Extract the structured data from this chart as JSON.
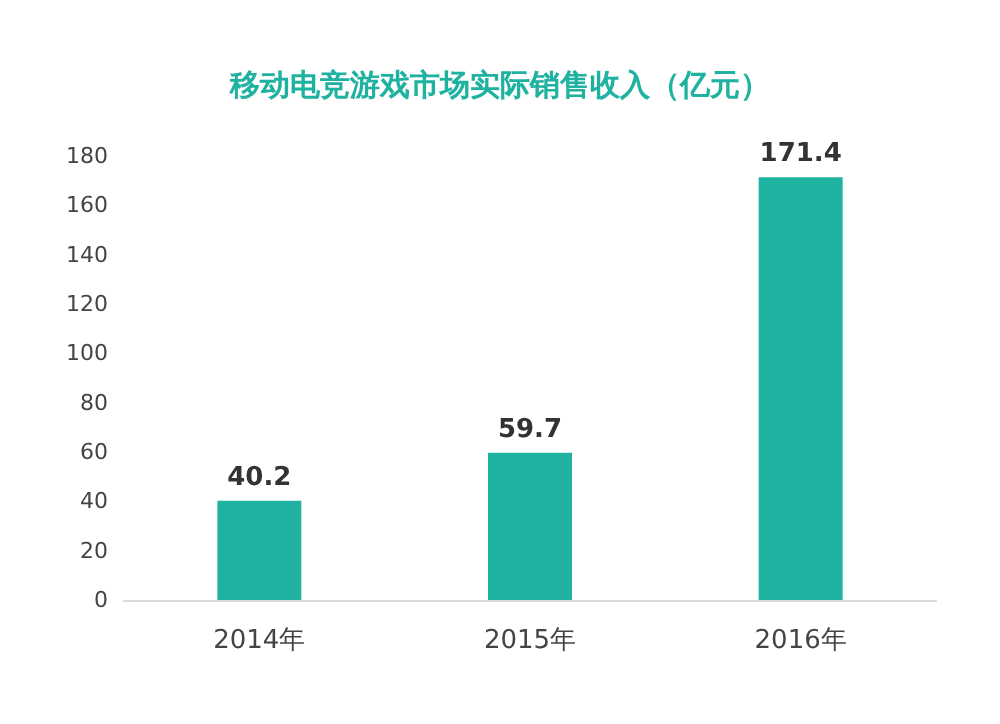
{
  "chart_data": {
    "type": "bar",
    "title": "移动电竞游戏市场实际销售收入（亿元）",
    "categories": [
      "2014年",
      "2015年",
      "2016年"
    ],
    "values": [
      40.2,
      59.7,
      171.4
    ],
    "color": "#20b2a0",
    "ylim": [
      0,
      180
    ],
    "yticks": [
      0,
      20,
      40,
      60,
      80,
      100,
      120,
      140,
      160,
      180
    ],
    "grid": false,
    "data_labels": true
  }
}
